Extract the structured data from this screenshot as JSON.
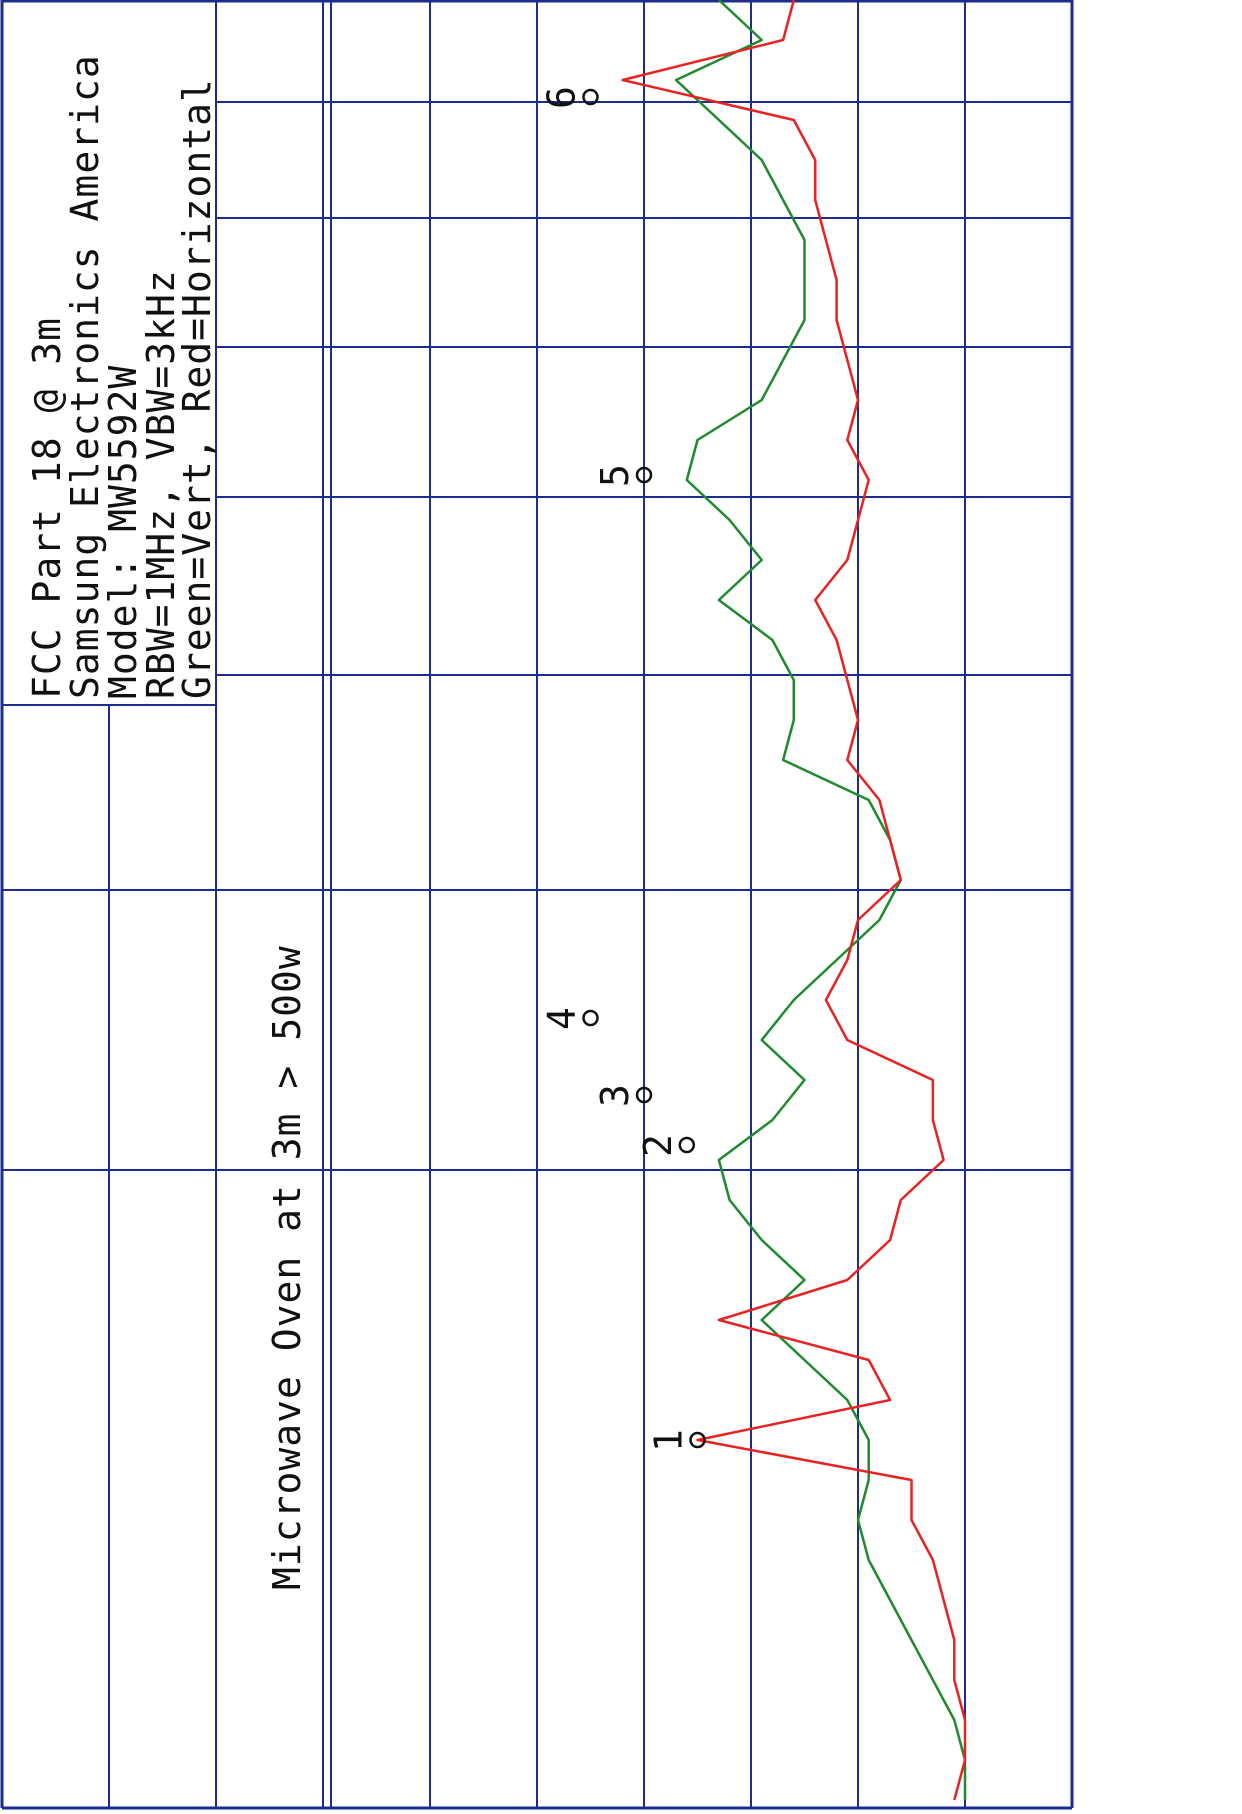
{
  "chart_data": {
    "type": "line",
    "title": "Microwave Oven at 3m > 500w",
    "annotations": [
      "FCC Part 18 @ 3m",
      "Samsung Electronics America",
      "Model: MW5592W",
      "RBW=1MHz, VBW=3kHz",
      "Green=Vert,  Red=Horizontal"
    ],
    "xlim": [
      0,
      90
    ],
    "ylim": [
      0,
      10
    ],
    "x_grid": [
      31.5,
      45.5,
      56.25,
      65.15,
      72.65,
      79.1,
      84.9
    ],
    "y_grid": [
      0,
      1,
      2,
      3,
      4,
      5,
      6,
      7,
      8,
      9,
      10
    ],
    "x": [
      0,
      2,
      4,
      6,
      8,
      10,
      12,
      14,
      16,
      18,
      20,
      22,
      24,
      26,
      28,
      30,
      32,
      34,
      36,
      38,
      40,
      42,
      44,
      46,
      48,
      50,
      52,
      54,
      56,
      58,
      60,
      62,
      64,
      66,
      68,
      70,
      72,
      74,
      76,
      78,
      80,
      82,
      84,
      86,
      88,
      90
    ],
    "series": [
      {
        "color": "#1f8a2e",
        "values": [
          1.0,
          1.0,
          1.1,
          1.3,
          1.5,
          1.7,
          1.9,
          2.0,
          1.9,
          1.9,
          2.1,
          2.5,
          2.9,
          2.5,
          2.9,
          3.2,
          3.3,
          2.8,
          2.5,
          2.9,
          2.6,
          2.2,
          1.8,
          1.6,
          1.7,
          1.9,
          2.7,
          2.6,
          2.6,
          2.8,
          3.3,
          2.9,
          3.2,
          3.6,
          3.5,
          2.9,
          2.7,
          2.5,
          2.5,
          2.5,
          2.7,
          2.9,
          3.3,
          3.7,
          2.9,
          3.3
        ]
      },
      {
        "color": "#e82222",
        "values": [
          1.1,
          1.0,
          1.0,
          1.1,
          1.1,
          1.2,
          1.3,
          1.5,
          1.5,
          3.5,
          1.7,
          1.9,
          3.3,
          2.1,
          1.7,
          1.6,
          1.2,
          1.3,
          1.3,
          2.1,
          2.3,
          2.1,
          2.0,
          1.6,
          1.7,
          1.8,
          2.1,
          2.0,
          2.1,
          2.2,
          2.4,
          2.1,
          2.0,
          1.9,
          2.1,
          2.0,
          2.1,
          2.2,
          2.2,
          2.3,
          2.4,
          2.4,
          2.6,
          4.2,
          2.7,
          2.6
        ]
      }
    ],
    "markers": [
      {
        "label": "1",
        "x": 18,
        "value": 3.5
      },
      {
        "label": "2",
        "x": 32.75,
        "value": 3.6
      },
      {
        "label": "3",
        "x": 35.25,
        "value": 4.0
      },
      {
        "label": "4",
        "x": 39.1,
        "value": 4.5
      },
      {
        "label": "5",
        "x": 66.25,
        "value": 4.0
      },
      {
        "label": "6",
        "x": 85.15,
        "value": 4.5
      }
    ],
    "grid_color": "#1d2d8f"
  }
}
